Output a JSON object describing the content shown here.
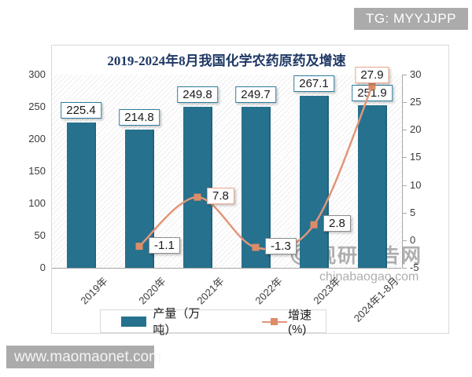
{
  "badges": {
    "top_right": "TG: MYYJJPP",
    "bottom_left": "www.maomaonet.com"
  },
  "chart_data": {
    "type": "bar+line",
    "title": "2019-2024年8月我国化学农药原药及增速",
    "categories": [
      "2019年",
      "2020年",
      "2021年",
      "2022年",
      "2023年",
      "2024年1-8月"
    ],
    "series": [
      {
        "name": "产量（万吨）",
        "type": "bar",
        "axis": "left",
        "values": [
          225.4,
          214.8,
          249.8,
          249.7,
          267.1,
          251.9
        ]
      },
      {
        "name": "增速(%)",
        "type": "line",
        "axis": "right",
        "values": [
          null,
          -1.1,
          7.8,
          -1.3,
          2.8,
          27.9
        ],
        "label_pos": [
          null,
          "right",
          "right",
          "right",
          "right",
          "above"
        ],
        "label_border": [
          null,
          "#8C8C8C",
          "#E9A68C",
          "#8C8C8C",
          "#8C8C8C",
          "#E9A68C"
        ]
      }
    ],
    "left_axis": {
      "min": 0,
      "max": 300,
      "ticks": [
        0,
        50,
        100,
        150,
        200,
        250,
        300
      ]
    },
    "right_axis": {
      "min": -5,
      "max": 30,
      "ticks": [
        -5,
        0,
        5,
        10,
        15,
        20,
        25,
        30
      ]
    },
    "legend_position": "bottom",
    "grid": false,
    "watermark": {
      "logo_text": "观研报告网",
      "url": "chinabaogao.com"
    }
  },
  "colors": {
    "bar": "#26718E",
    "bar_label_border": "#2E7D9E",
    "line": "#E29679",
    "marker": "#DD8C66",
    "title": "#1F3864",
    "axis": "#A6A6A6",
    "frame_border": "#D9D9D9",
    "badge_bg": "#ABABAB",
    "watermark": "#9B9B9B"
  }
}
